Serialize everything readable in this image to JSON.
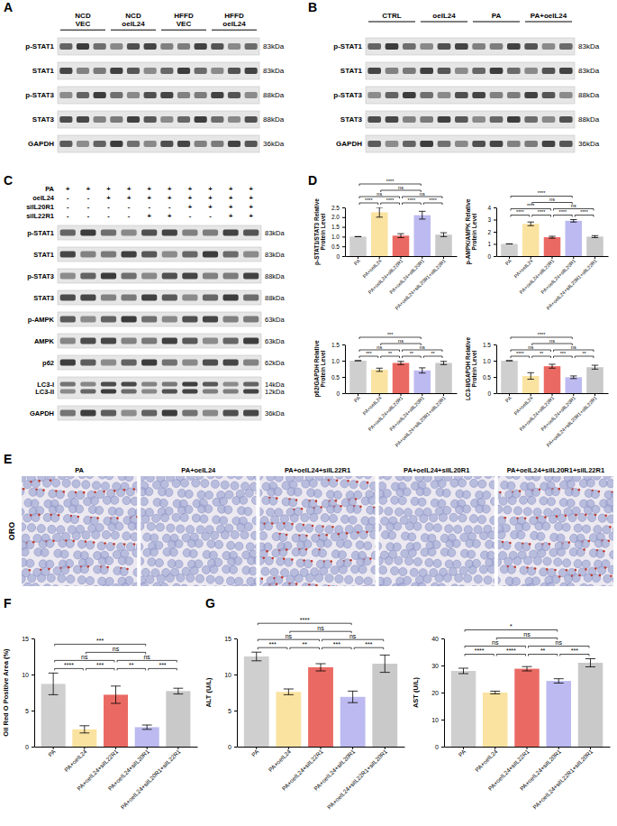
{
  "letters": [
    "A",
    "B",
    "C",
    "D",
    "E",
    "F",
    "G"
  ],
  "blots": [
    {
      "groups": [
        {
          "label": "NCD VEC",
          "lanes": 3
        },
        {
          "label": "NCD oeIL24",
          "lanes": 3
        },
        {
          "label": "HFFD VEC",
          "lanes": 3
        },
        {
          "label": "HFFD oeIL24",
          "lanes": 3
        }
      ],
      "rows": [
        {
          "labels": [
            "p-STAT1"
          ],
          "kda": [
            "83kDa"
          ]
        },
        {
          "labels": [
            "STAT1"
          ],
          "kda": [
            "83kDa"
          ]
        },
        {
          "labels": [
            "p-STAT3"
          ],
          "kda": [
            "88kDa"
          ]
        },
        {
          "labels": [
            "STAT3"
          ],
          "kda": [
            "88kDa"
          ]
        },
        {
          "labels": [
            "GAPDH"
          ],
          "kda": [
            "36kDa"
          ]
        }
      ]
    },
    {
      "groups": [
        {
          "label": "CTRL",
          "lanes": 3
        },
        {
          "label": "oeIL24",
          "lanes": 3
        },
        {
          "label": "PA",
          "lanes": 3
        },
        {
          "label": "PA+oeIL24",
          "lanes": 3
        }
      ],
      "rows": [
        {
          "labels": [
            "p-STAT1"
          ],
          "kda": [
            "83kDa"
          ]
        },
        {
          "labels": [
            "STAT1"
          ],
          "kda": [
            "83kDa"
          ]
        },
        {
          "labels": [
            "p-STAT3"
          ],
          "kda": [
            "88kDa"
          ]
        },
        {
          "labels": [
            "STAT3"
          ],
          "kda": [
            "88kDa"
          ]
        },
        {
          "labels": [
            "GAPDH"
          ],
          "kda": [
            "36kDa"
          ]
        }
      ]
    },
    {
      "conditions": [
        {
          "label": "PA",
          "signs": [
            "+",
            "+",
            "+",
            "+",
            "+",
            "+",
            "+",
            "+",
            "+",
            "+"
          ]
        },
        {
          "label": "oeIL24",
          "signs": [
            "-",
            "-",
            "+",
            "+",
            "+",
            "+",
            "+",
            "+",
            "+",
            "+"
          ]
        },
        {
          "label": "siIL20R1",
          "signs": [
            "-",
            "-",
            "-",
            "-",
            "-",
            "-",
            "+",
            "+",
            "+",
            "+"
          ]
        },
        {
          "label": "siIL22R1",
          "signs": [
            "-",
            "-",
            "-",
            "-",
            "+",
            "+",
            "-",
            "-",
            "+",
            "+"
          ]
        }
      ],
      "rows": [
        {
          "labels": [
            "p-STAT1"
          ],
          "kda": [
            "83kDa"
          ]
        },
        {
          "labels": [
            "STAT1"
          ],
          "kda": [
            "83kDa"
          ]
        },
        {
          "labels": [
            "p-STAT3"
          ],
          "kda": [
            "88kDa"
          ]
        },
        {
          "labels": [
            "STAT3"
          ],
          "kda": [
            "88kDa"
          ]
        },
        {
          "labels": [
            "p-AMPK"
          ],
          "kda": [
            "63kDa"
          ]
        },
        {
          "labels": [
            "AMPK"
          ],
          "kda": [
            "63kDa"
          ]
        },
        {
          "labels": [
            "p62"
          ],
          "kda": [
            "62kDa"
          ]
        },
        {
          "labels": [
            "LC3-I",
            "LC3-II"
          ],
          "kda": [
            "14kDa",
            "12kDa"
          ]
        },
        {
          "labels": [
            "GAPDH"
          ],
          "kda": [
            "36kDa"
          ]
        }
      ]
    }
  ],
  "images": {
    "stain": "ORO",
    "titles": [
      "PA",
      "PA+oeIL24",
      "PA+oeIL24+siIL22R1",
      "PA+oeIL24+siIL20R1",
      "PA+oeIL24+siIL20R1+siIL22R1"
    ]
  },
  "chart_data": [
    {
      "type": "bar",
      "ylabel": "p-STAT1/STAT3 Relative Protein Level",
      "categories": [
        "PA",
        "PA+oeIL24",
        "PA+oeIL24+siIL22R1",
        "PA+oeIL24+siIL20R1",
        "PA+oeIL24+siIL20R1+siIL22R1"
      ],
      "values": [
        1,
        2.25,
        1.05,
        2.1,
        1.1
      ],
      "errors": [
        0,
        0.25,
        0.1,
        0.2,
        0.1
      ],
      "colors": [
        "#cfcfcf",
        "#fae3a1",
        "#ea6a63",
        "#bcbaf0",
        "#c9c9c9"
      ],
      "ylim": [
        0,
        2.5
      ],
      "yticks": [
        0,
        0.5,
        {
          "value": 1,
          "label": "1.0"
        },
        1.5,
        {
          "value": 2,
          "label": "2.0"
        },
        2.5
      ],
      "comparisons": [
        {
          "groups": [
            0,
            1
          ],
          "label": "****"
        },
        {
          "groups": [
            1,
            2
          ],
          "label": "****"
        },
        {
          "groups": [
            2,
            3
          ],
          "label": "****"
        },
        {
          "groups": [
            3,
            4
          ],
          "label": "****"
        },
        {
          "groups": [
            0,
            2
          ],
          "label": "ns"
        },
        {
          "groups": [
            2,
            4
          ],
          "label": "ns"
        },
        {
          "groups": [
            1,
            3
          ],
          "label": "ns"
        },
        {
          "groups": [
            0,
            3
          ],
          "label": "****"
        }
      ]
    },
    {
      "type": "bar",
      "ylabel": "p-AMPK/AMPK Relative Protein Level",
      "categories": [
        "PA",
        "PA+oeIL24",
        "PA+oeIL24+siIL22R1",
        "PA+oeIL24+siIL20R1",
        "PA+oeIL24+siIL20R1+siIL22R1"
      ],
      "values": [
        1,
        2.65,
        1.55,
        2.9,
        1.6
      ],
      "errors": [
        0,
        0.15,
        0.08,
        0.1,
        0.08
      ],
      "colors": [
        "#cfcfcf",
        "#fae3a1",
        "#ea6a63",
        "#bcbaf0",
        "#c9c9c9"
      ],
      "ylim": [
        0,
        4
      ],
      "yticks": [
        0,
        1,
        2,
        3,
        4
      ],
      "comparisons": [
        {
          "groups": [
            0,
            1
          ],
          "label": "****"
        },
        {
          "groups": [
            1,
            2
          ],
          "label": "****"
        },
        {
          "groups": [
            2,
            3
          ],
          "label": "****"
        },
        {
          "groups": [
            3,
            4
          ],
          "label": "****"
        },
        {
          "groups": [
            0,
            2
          ],
          "label": "****"
        },
        {
          "groups": [
            2,
            4
          ],
          "label": "ns"
        },
        {
          "groups": [
            1,
            3
          ],
          "label": "ns"
        },
        {
          "groups": [
            0,
            3
          ],
          "label": "****"
        }
      ]
    },
    {
      "type": "bar",
      "ylabel": "p62/GAPDH Relative Protein Level",
      "categories": [
        "PA",
        "PA+oeIL24",
        "PA+oeIL24+siIL22R1",
        "PA+oeIL24+siIL20R1",
        "PA+oeIL24+siIL20R1+siIL22R1"
      ],
      "values": [
        1,
        0.72,
        0.93,
        0.7,
        0.93
      ],
      "errors": [
        0,
        0.05,
        0.05,
        0.08,
        0.05
      ],
      "colors": [
        "#cfcfcf",
        "#fae3a1",
        "#ea6a63",
        "#bcbaf0",
        "#c9c9c9"
      ],
      "ylim": [
        0,
        1.5
      ],
      "yticks": [
        0,
        0.5,
        {
          "value": 1,
          "label": "1.0"
        },
        1.5
      ],
      "comparisons": [
        {
          "groups": [
            0,
            1
          ],
          "label": "***"
        },
        {
          "groups": [
            1,
            2
          ],
          "label": "**"
        },
        {
          "groups": [
            2,
            3
          ],
          "label": "**"
        },
        {
          "groups": [
            3,
            4
          ],
          "label": "**"
        },
        {
          "groups": [
            0,
            2
          ],
          "label": "ns"
        },
        {
          "groups": [
            2,
            4
          ],
          "label": "ns"
        },
        {
          "groups": [
            1,
            3
          ],
          "label": "ns"
        },
        {
          "groups": [
            0,
            3
          ],
          "label": "***"
        }
      ]
    },
    {
      "type": "bar",
      "ylabel": "LC3-II/GAPDH Relative Protein Level",
      "categories": [
        "PA",
        "PA+oeIL24",
        "PA+oeIL24+siIL22R1",
        "PA+oeIL24+siIL20R1",
        "PA+oeIL24+siIL20R1+siIL22R1"
      ],
      "values": [
        1,
        0.53,
        0.83,
        0.49,
        0.8
      ],
      "errors": [
        0,
        0.1,
        0.06,
        0.04,
        0.06
      ],
      "colors": [
        "#cfcfcf",
        "#fae3a1",
        "#ea6a63",
        "#bcbaf0",
        "#c9c9c9"
      ],
      "ylim": [
        0,
        1.5
      ],
      "yticks": [
        0,
        0.5,
        {
          "value": 1,
          "label": "1.0"
        },
        1.5
      ],
      "comparisons": [
        {
          "groups": [
            0,
            1
          ],
          "label": "****"
        },
        {
          "groups": [
            1,
            2
          ],
          "label": "**"
        },
        {
          "groups": [
            2,
            3
          ],
          "label": "***"
        },
        {
          "groups": [
            3,
            4
          ],
          "label": "**"
        },
        {
          "groups": [
            0,
            2
          ],
          "label": "ns"
        },
        {
          "groups": [
            2,
            4
          ],
          "label": "ns"
        },
        {
          "groups": [
            1,
            3
          ],
          "label": "ns"
        },
        {
          "groups": [
            0,
            3
          ],
          "label": "****"
        }
      ]
    },
    {
      "type": "bar",
      "ylabel": "Oil Red O Positive Area (%)",
      "categories": [
        "PA",
        "PA+oeIL24",
        "PA+oeIL24+siIL22R1",
        "PA+oeIL24+siIL20R1",
        "PA+oeIL24+siIL20R1+siIL22R1"
      ],
      "values": [
        8.7,
        2.4,
        7.2,
        2.7,
        7.7
      ],
      "errors": [
        1.5,
        0.5,
        1.2,
        0.3,
        0.4
      ],
      "colors": [
        "#cfcfcf",
        "#fae3a1",
        "#ea6a63",
        "#bcbaf0",
        "#c9c9c9"
      ],
      "ylim": [
        0,
        15
      ],
      "yticks": [
        0,
        5,
        10,
        15
      ],
      "comparisons": [
        {
          "groups": [
            0,
            1
          ],
          "label": "****"
        },
        {
          "groups": [
            1,
            2
          ],
          "label": "***"
        },
        {
          "groups": [
            2,
            3
          ],
          "label": "**"
        },
        {
          "groups": [
            3,
            4
          ],
          "label": "***"
        },
        {
          "groups": [
            0,
            2
          ],
          "label": "ns"
        },
        {
          "groups": [
            2,
            4
          ],
          "label": "ns"
        },
        {
          "groups": [
            1,
            3
          ],
          "label": "ns"
        },
        {
          "groups": [
            0,
            3
          ],
          "label": "***"
        }
      ]
    },
    {
      "type": "bar",
      "ylabel": "ALT (U/L)",
      "categories": [
        "PA",
        "PA+oeIL24",
        "PA+oeIL24+siIL22R1",
        "PA+oeIL24+siIL20R1",
        "PA+oeIL24+siIL22R1+siIL20R1"
      ],
      "values": [
        12.5,
        7.6,
        11,
        6.9,
        11.5
      ],
      "errors": [
        0.6,
        0.4,
        0.5,
        0.8,
        1.2
      ],
      "colors": [
        "#cfcfcf",
        "#fae3a1",
        "#ea6a63",
        "#bcbaf0",
        "#c9c9c9"
      ],
      "ylim": [
        0,
        15
      ],
      "yticks": [
        0,
        5,
        10,
        15
      ],
      "comparisons": [
        {
          "groups": [
            0,
            1
          ],
          "label": "***"
        },
        {
          "groups": [
            1,
            2
          ],
          "label": "**"
        },
        {
          "groups": [
            2,
            3
          ],
          "label": "***"
        },
        {
          "groups": [
            3,
            4
          ],
          "label": "***"
        },
        {
          "groups": [
            0,
            2
          ],
          "label": "ns"
        },
        {
          "groups": [
            2,
            4
          ],
          "label": "ns"
        },
        {
          "groups": [
            1,
            3
          ],
          "label": "ns"
        },
        {
          "groups": [
            0,
            3
          ],
          "label": "****"
        }
      ]
    },
    {
      "type": "bar",
      "ylabel": "AST (U/L)",
      "categories": [
        "PA",
        "PA+oeIL24",
        "PA+oeIL24+siIL22R1",
        "PA+oeIL24+siIL20R1",
        "PA+oeIL24+siIL22R1+siIL20R1"
      ],
      "values": [
        28,
        20,
        28.8,
        24.3,
        31
      ],
      "errors": [
        1,
        0.5,
        0.8,
        0.8,
        1.5
      ],
      "colors": [
        "#cfcfcf",
        "#fae3a1",
        "#ea6a63",
        "#bcbaf0",
        "#c9c9c9"
      ],
      "ylim": [
        0,
        40
      ],
      "yticks": [
        0,
        10,
        20,
        30,
        40
      ],
      "comparisons": [
        {
          "groups": [
            0,
            1
          ],
          "label": "****"
        },
        {
          "groups": [
            1,
            2
          ],
          "label": "****"
        },
        {
          "groups": [
            2,
            3
          ],
          "label": "**"
        },
        {
          "groups": [
            3,
            4
          ],
          "label": "***"
        },
        {
          "groups": [
            0,
            2
          ],
          "label": "ns"
        },
        {
          "groups": [
            2,
            4
          ],
          "label": "ns"
        },
        {
          "groups": [
            1,
            3
          ],
          "label": "ns"
        },
        {
          "groups": [
            0,
            3
          ],
          "label": "*"
        }
      ]
    }
  ]
}
